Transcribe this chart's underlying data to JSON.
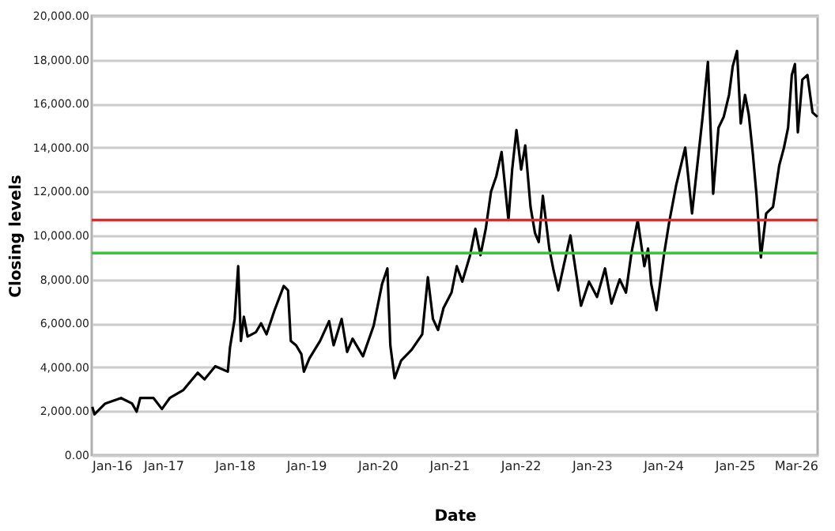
{
  "chart_data": {
    "type": "line",
    "xlabel": "Date",
    "ylabel": "Closing levels",
    "xlim": [
      "2016-01-01",
      "2026-03-01"
    ],
    "xticks": [
      {
        "value": "2016-01-01",
        "label": "Jan-16"
      },
      {
        "value": "2017-01-01",
        "label": "Jan-17"
      },
      {
        "value": "2018-01-01",
        "label": "Jan-18"
      },
      {
        "value": "2019-01-01",
        "label": "Jan-19"
      },
      {
        "value": "2020-01-01",
        "label": "Jan-20"
      },
      {
        "value": "2021-01-01",
        "label": "Jan-21"
      },
      {
        "value": "2022-01-01",
        "label": "Jan-22"
      },
      {
        "value": "2023-01-01",
        "label": "Jan-23"
      },
      {
        "value": "2024-01-01",
        "label": "Jan-24"
      },
      {
        "value": "2025-01-01",
        "label": "Jan-25"
      },
      {
        "value": "2026-03-01",
        "label": "Mar-26"
      }
    ],
    "ylim": [
      0,
      20000
    ],
    "yticks": [
      {
        "value": 0,
        "label": "0.00"
      },
      {
        "value": 2000,
        "label": "2,000.00"
      },
      {
        "value": 4000,
        "label": "4,000.00"
      },
      {
        "value": 6000,
        "label": "6,000.00"
      },
      {
        "value": 8000,
        "label": "8,000.00"
      },
      {
        "value": 10000,
        "label": "10,000.00"
      },
      {
        "value": 12000,
        "label": "12,000.00"
      },
      {
        "value": 14000,
        "label": "14,000.00"
      },
      {
        "value": 16000,
        "label": "16,000.00"
      },
      {
        "value": 18000,
        "label": "18,000.00"
      },
      {
        "value": 20000,
        "label": "20,000.00"
      }
    ],
    "grid": "y",
    "ref_lines": [
      {
        "axis": "y",
        "value": 10700,
        "color": "#e8262a"
      },
      {
        "axis": "y",
        "value": 9200,
        "color": "#2ecc2e"
      }
    ],
    "series": [
      {
        "color": "#000000",
        "x": [
          "2016-01-04",
          "2016-01-15",
          "2016-03-10",
          "2016-05-30",
          "2016-07-25",
          "2016-08-18",
          "2016-09-05",
          "2016-11-12",
          "2016-12-25",
          "2017-02-03",
          "2017-04-12",
          "2017-06-26",
          "2017-07-31",
          "2017-09-24",
          "2017-11-27",
          "2017-12-08",
          "2018-01-01",
          "2018-01-19",
          "2018-02-02",
          "2018-02-17",
          "2018-03-08",
          "2018-04-20",
          "2018-05-16",
          "2018-06-13",
          "2018-07-24",
          "2018-09-09",
          "2018-10-01",
          "2018-10-15",
          "2018-11-11",
          "2018-12-08",
          "2018-12-21",
          "2019-01-18",
          "2019-03-14",
          "2019-04-29",
          "2019-05-22",
          "2019-07-02",
          "2019-07-30",
          "2019-08-27",
          "2019-10-19",
          "2019-12-13",
          "2020-01-25",
          "2020-02-21",
          "2020-03-07",
          "2020-03-29",
          "2020-05-01",
          "2020-06-24",
          "2020-08-17",
          "2020-09-15",
          "2020-10-11",
          "2020-11-06",
          "2020-12-04",
          "2021-01-14",
          "2021-02-10",
          "2021-03-10",
          "2021-04-19",
          "2021-05-16",
          "2021-06-11",
          "2021-07-08",
          "2021-08-04",
          "2021-08-31",
          "2021-09-27",
          "2021-11-01",
          "2021-11-20",
          "2021-12-12",
          "2022-01-05",
          "2022-01-26",
          "2022-02-22",
          "2022-03-17",
          "2022-04-05",
          "2022-04-26",
          "2022-05-29",
          "2022-06-20",
          "2022-07-14",
          "2022-08-10",
          "2022-09-14",
          "2022-10-11",
          "2022-11-07",
          "2022-12-18",
          "2023-01-28",
          "2023-03-10",
          "2023-04-12",
          "2023-05-24",
          "2023-06-25",
          "2023-07-23",
          "2023-08-24",
          "2023-09-27",
          "2023-10-16",
          "2023-11-01",
          "2023-11-28",
          "2024-01-05",
          "2024-02-01",
          "2024-03-08",
          "2024-04-23",
          "2024-05-28",
          "2024-06-24",
          "2024-07-21",
          "2024-08-17",
          "2024-09-13",
          "2024-10-10",
          "2024-11-06",
          "2024-12-03",
          "2024-12-22",
          "2025-01-13",
          "2025-02-01",
          "2025-02-23",
          "2025-03-14",
          "2025-04-04",
          "2025-04-23",
          "2025-05-15",
          "2025-06-11",
          "2025-07-16",
          "2025-08-17",
          "2025-09-10",
          "2025-10-01",
          "2025-10-20",
          "2025-11-05",
          "2025-11-20",
          "2025-12-13",
          "2026-01-08",
          "2026-02-03",
          "2026-02-28"
        ],
        "values": [
          2200,
          1860,
          2350,
          2600,
          2350,
          1980,
          2600,
          2600,
          2100,
          2600,
          2950,
          3750,
          3450,
          4050,
          3800,
          4900,
          6200,
          8600,
          5200,
          6300,
          5400,
          5600,
          6000,
          5500,
          6600,
          7700,
          7500,
          5200,
          5000,
          4600,
          3800,
          4400,
          5200,
          6100,
          5000,
          6200,
          4700,
          5300,
          4500,
          5900,
          7800,
          8500,
          5000,
          3500,
          4300,
          4800,
          5500,
          8100,
          6200,
          5700,
          6700,
          7400,
          8600,
          7900,
          9100,
          10300,
          9100,
          10300,
          12000,
          12700,
          13800,
          10700,
          13000,
          14800,
          13000,
          14100,
          11300,
          10100,
          9700,
          11800,
          9400,
          8400,
          7500,
          8600,
          10000,
          8400,
          6800,
          7900,
          7200,
          8500,
          6900,
          8000,
          7400,
          9200,
          10700,
          8600,
          9400,
          7800,
          6600,
          9100,
          10600,
          12300,
          14000,
          11000,
          13200,
          15400,
          17900,
          11900,
          14900,
          15400,
          16400,
          17700,
          18400,
          15100,
          16400,
          15500,
          13700,
          11800,
          9000,
          11000,
          11300,
          13200,
          14000,
          14900,
          17300,
          17800,
          14700,
          17100,
          17300,
          15600,
          15400
        ]
      }
    ]
  }
}
